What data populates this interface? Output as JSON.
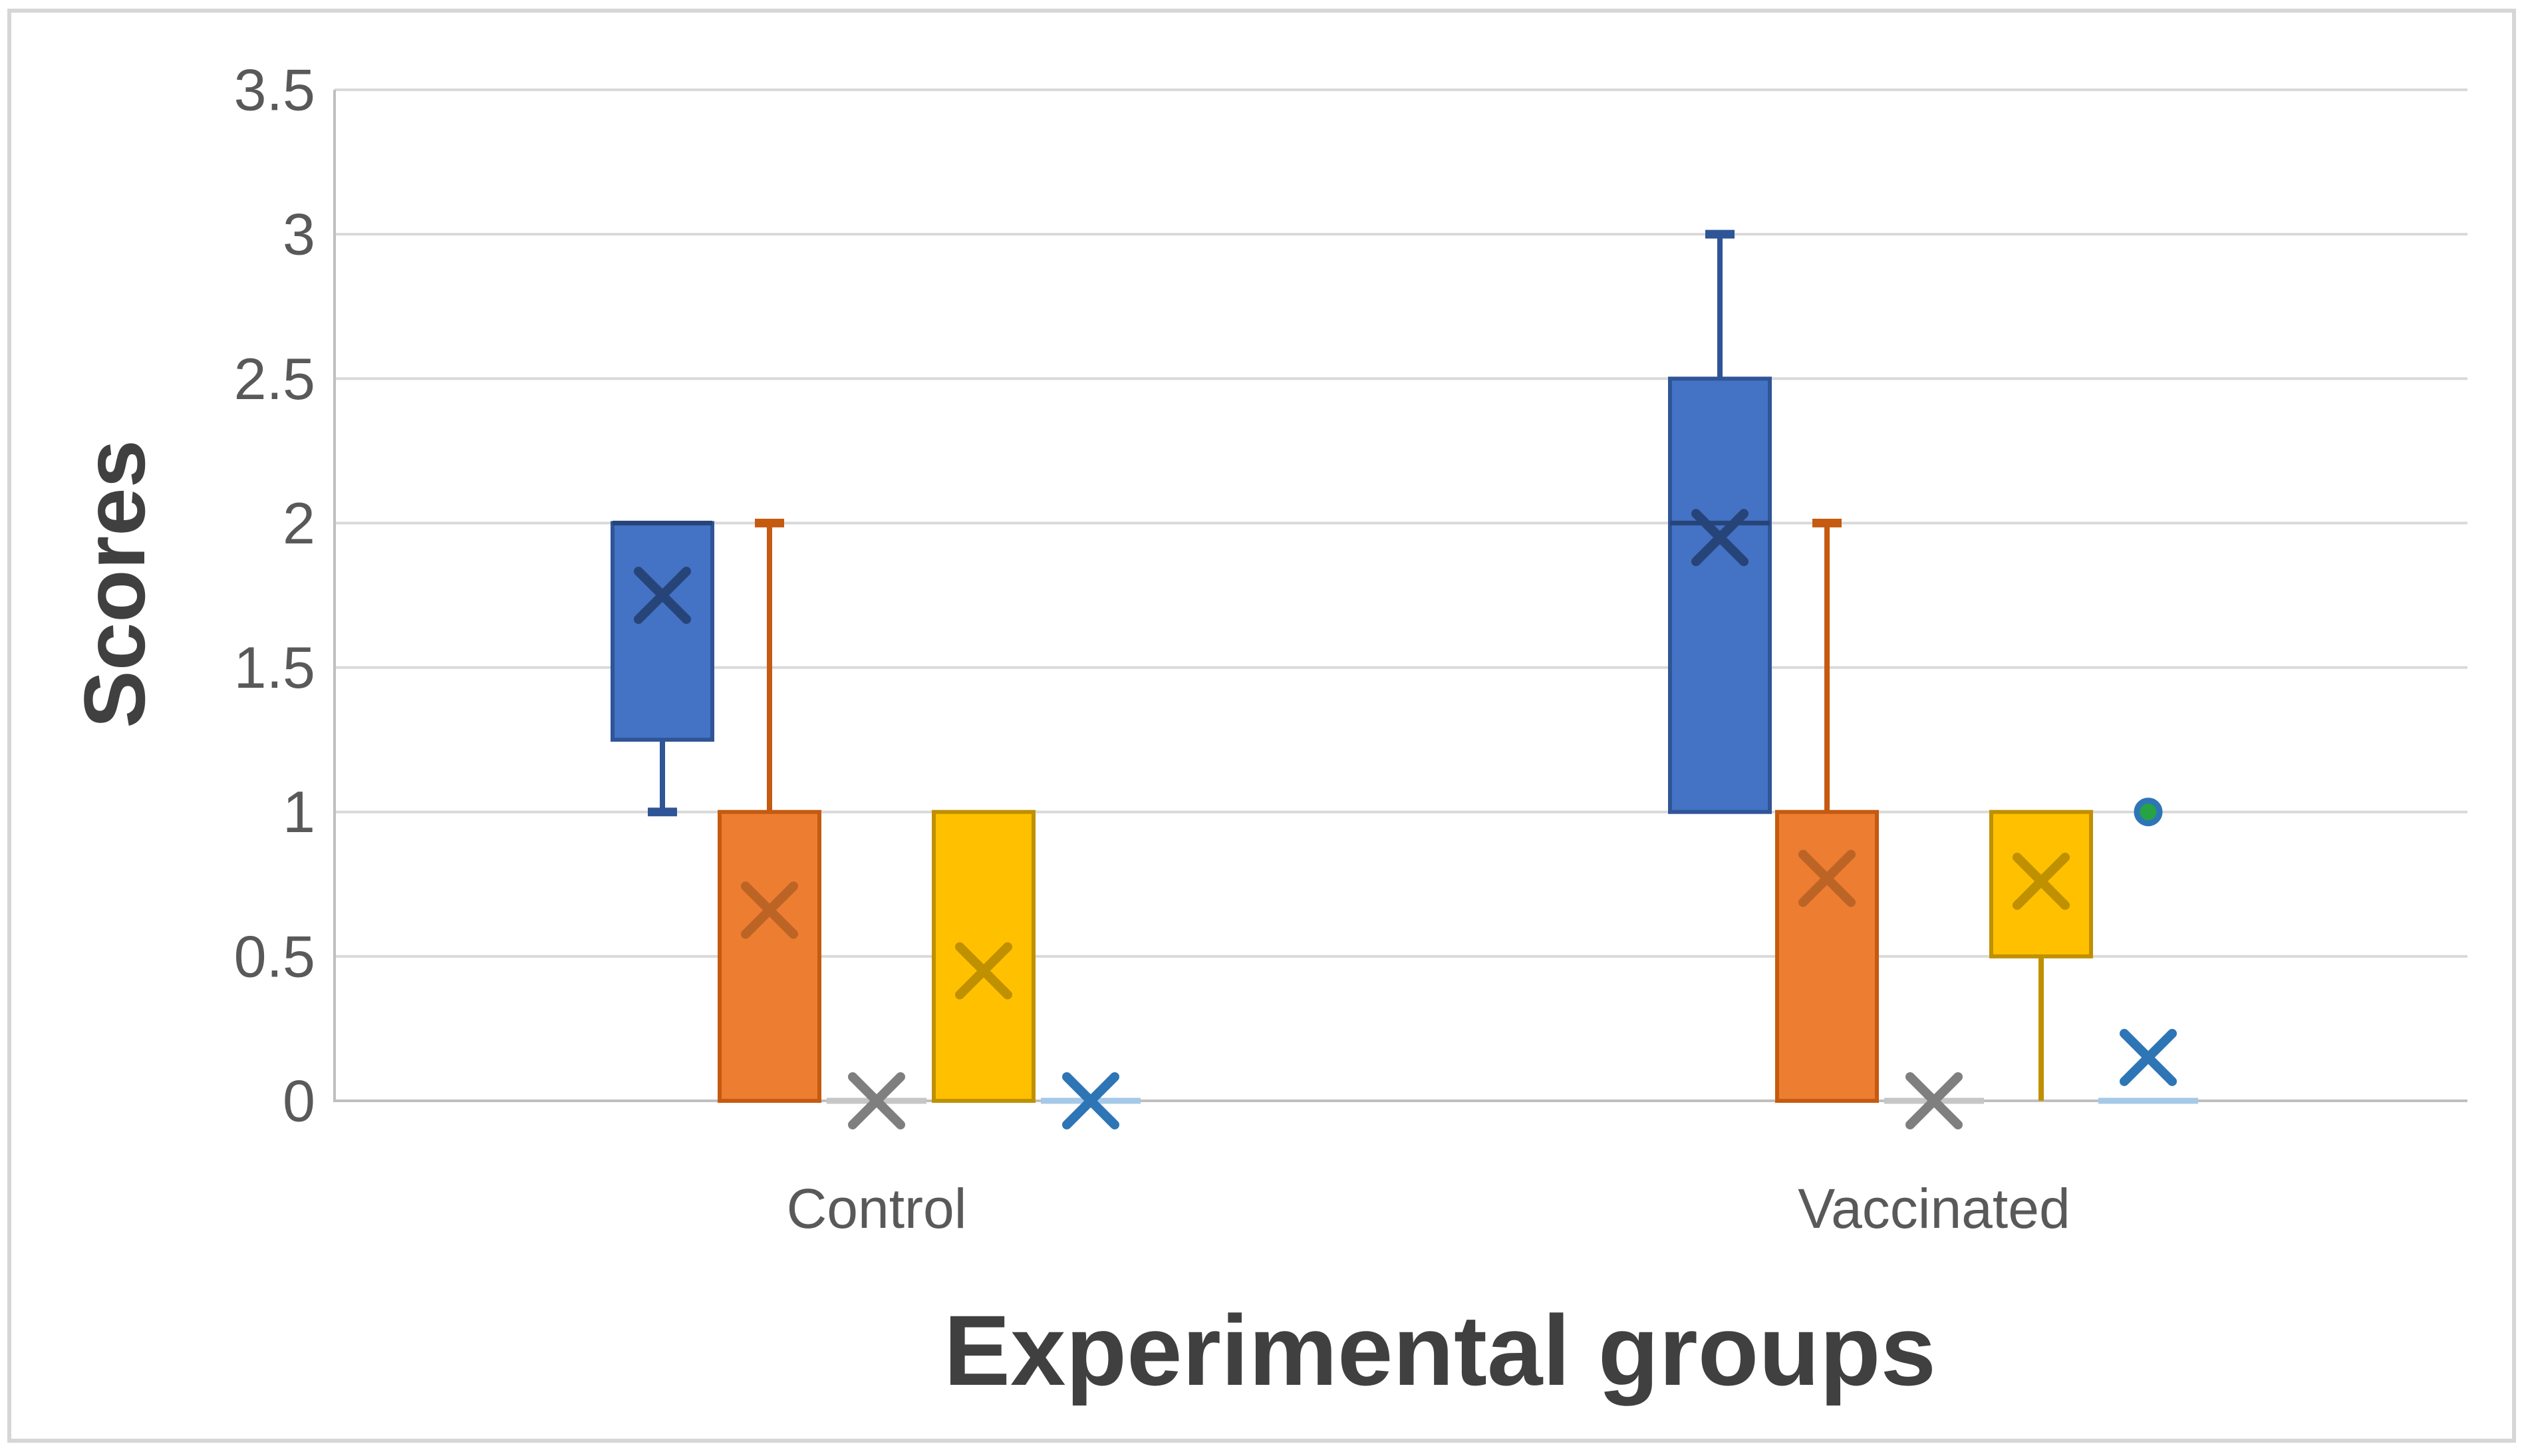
{
  "frame": {
    "background": "#FFFFFF",
    "border_color": "#D6D6D6"
  },
  "chart_data": {
    "type": "box",
    "title": "",
    "xlabel": "Experimental groups",
    "ylabel": "Scores",
    "categories": [
      "Control",
      "Vaccinated"
    ],
    "y_axis": {
      "min": 0,
      "max": 3.5,
      "step": 0.5,
      "tick_labels": [
        "0",
        "0.5",
        "1",
        "1.5",
        "2",
        "2.5",
        "3",
        "3.5"
      ]
    },
    "grid": true,
    "legend": "none",
    "series": [
      {
        "name": "blue",
        "fill": "#4472C4",
        "border": "#2F5597",
        "mean_color": "#264478",
        "stats": [
          {
            "q1": 1.25,
            "q3": 2,
            "median": 2,
            "whisker_low": 1,
            "whisker_low_cap": true,
            "mean": 1.75
          },
          {
            "q1": 1,
            "q3": 2.5,
            "median": 2,
            "whisker_high": 3,
            "whisker_high_cap": true,
            "mean": 1.95
          }
        ]
      },
      {
        "name": "orange",
        "fill": "#ED7D31",
        "border": "#C55A11",
        "mean_color": "#BC6425",
        "stats": [
          {
            "q1": 0,
            "q3": 1,
            "whisker_high": 2,
            "whisker_high_cap": true,
            "mean": 0.66
          },
          {
            "q1": 0,
            "q3": 1,
            "whisker_high": 2,
            "whisker_high_cap": true,
            "mean": 0.77
          }
        ]
      },
      {
        "name": "gray",
        "flat_color": "#C6C6C6",
        "mean_color": "#7F7F7F",
        "stats": [
          {
            "flat": 0,
            "mean": 0
          },
          {
            "flat": 0,
            "mean": 0
          }
        ]
      },
      {
        "name": "yellow",
        "fill": "#FFC000",
        "border": "#BF9000",
        "mean_color": "#BF9000",
        "stats": [
          {
            "q1": 0,
            "q3": 1,
            "mean": 0.45
          },
          {
            "q1": 0.5,
            "q3": 1,
            "whisker_low": 0,
            "whisker_low_cap": false,
            "mean": 0.76
          }
        ]
      },
      {
        "name": "light-blue",
        "flat_color": "#A6C9E8",
        "mean_color": "#2E75B6",
        "outlier_fill": "#27A343",
        "outlier_stroke": "#2E75B6",
        "stats": [
          {
            "flat": 0,
            "mean": 0
          },
          {
            "flat": 0,
            "mean": 0.15,
            "outliers": [
              1
            ]
          }
        ]
      }
    ]
  },
  "styles": {
    "grid_color": "#D9D9D9",
    "axis_color": "#BFBFBF",
    "tick_color": "#595959",
    "category_color": "#595959",
    "title_color": "#404040"
  }
}
